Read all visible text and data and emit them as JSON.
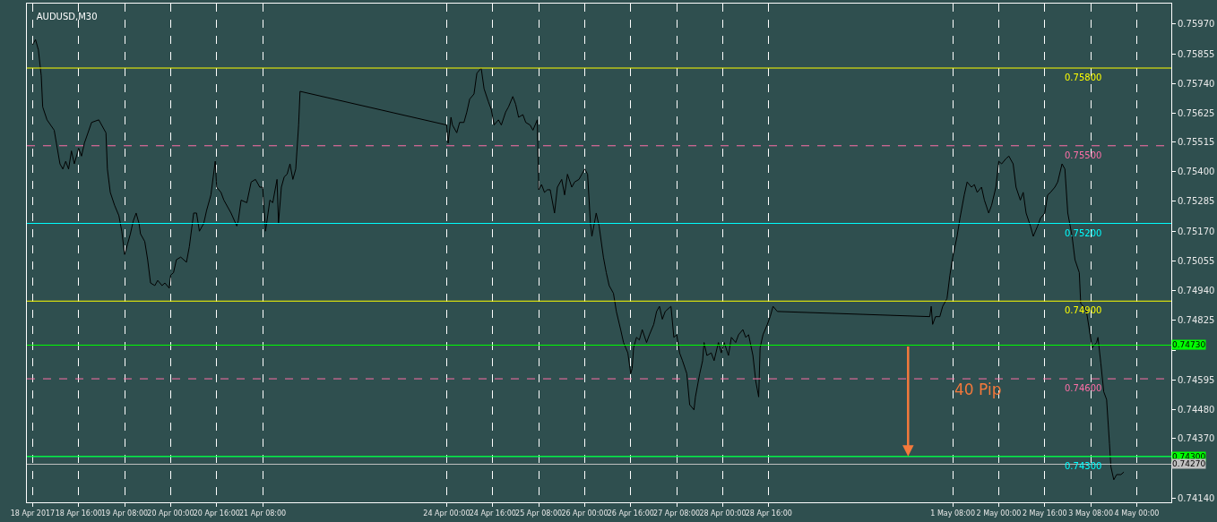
{
  "chart_data": {
    "type": "line",
    "title": "AUDUSD,M30",
    "x": [
      "2017-04-18T00:00",
      "2017-04-18T01:00",
      "2017-04-18T02:00",
      "2017-04-18T03:00",
      "2017-04-18T03:30",
      "2017-04-18T05:00",
      "2017-04-18T07:30",
      "2017-04-18T09:30",
      "2017-04-18T10:30",
      "2017-04-18T11:30",
      "2017-04-18T12:30",
      "2017-04-18T13:30",
      "2017-04-18T14:30",
      "2017-04-18T16:00",
      "2017-04-18T17:00",
      "2017-04-18T18:00",
      "2017-04-18T20:30",
      "2017-04-18T23:00",
      "2017-04-19T01:30",
      "2017-04-19T02:00",
      "2017-04-19T03:00",
      "2017-04-19T04:30",
      "2017-04-19T06:00",
      "2017-04-19T07:00",
      "2017-04-19T08:00",
      "2017-04-19T09:00",
      "2017-04-19T10:00",
      "2017-04-19T11:00",
      "2017-04-19T12:00",
      "2017-04-19T13:00",
      "2017-04-19T13:30",
      "2017-04-19T15:00",
      "2017-04-19T16:00",
      "2017-04-19T17:00",
      "2017-04-19T18:30",
      "2017-04-19T19:30",
      "2017-04-19T21:00",
      "2017-04-19T22:00",
      "2017-04-19T23:30",
      "2017-04-20T00:00",
      "2017-04-20T01:00",
      "2017-04-20T02:00",
      "2017-04-20T03:30",
      "2017-04-20T05:30",
      "2017-04-20T06:30",
      "2017-04-20T08:00",
      "2017-04-20T09:00",
      "2017-04-20T10:00",
      "2017-04-20T11:30",
      "2017-04-20T12:30",
      "2017-04-20T14:00",
      "2017-04-20T15:30",
      "2017-04-20T16:00",
      "2017-04-20T17:30",
      "2017-04-20T18:30",
      "2017-04-20T21:00",
      "2017-04-20T23:00",
      "2017-04-20T23:30",
      "2017-04-21T00:30",
      "2017-04-21T02:30",
      "2017-04-21T04:00",
      "2017-04-21T05:30",
      "2017-04-21T07:00",
      "2017-04-21T08:00",
      "2017-04-21T09:00",
      "2017-04-21T10:30",
      "2017-04-21T11:30",
      "2017-04-21T13:00",
      "2017-04-21T13:30",
      "2017-04-21T14:30",
      "2017-04-21T15:30",
      "2017-04-21T16:30",
      "2017-04-21T17:30",
      "2017-04-21T18:30",
      "2017-04-21T19:30",
      "2017-04-21T20:30",
      "2017-04-21T21:00",
      "2017-04-24T00:00",
      "2017-04-24T00:30",
      "2017-04-24T01:30",
      "2017-04-24T02:00",
      "2017-04-24T03:30",
      "2017-04-24T04:30",
      "2017-04-24T06:00",
      "2017-04-24T07:00",
      "2017-04-24T08:00",
      "2017-04-24T09:30",
      "2017-04-24T10:30",
      "2017-04-24T12:00",
      "2017-04-24T13:00",
      "2017-04-24T14:30",
      "2017-04-24T15:30",
      "2017-04-24T16:30",
      "2017-04-24T18:00",
      "2017-04-24T19:00",
      "2017-04-24T20:30",
      "2017-04-24T21:30",
      "2017-04-24T23:00",
      "2017-04-25T00:00",
      "2017-04-25T01:00",
      "2017-04-25T02:30",
      "2017-04-25T03:30",
      "2017-04-25T05:00",
      "2017-04-25T06:00",
      "2017-04-25T07:30",
      "2017-04-25T08:00",
      "2017-04-25T09:00",
      "2017-04-25T10:00",
      "2017-04-25T11:00",
      "2017-04-25T12:00",
      "2017-04-25T13:30",
      "2017-04-25T14:30",
      "2017-04-25T16:00",
      "2017-04-25T17:00",
      "2017-04-25T18:00",
      "2017-04-25T19:30",
      "2017-04-25T20:30",
      "2017-04-25T22:00",
      "2017-04-25T23:00",
      "2017-04-26T00:00",
      "2017-04-26T01:00",
      "2017-04-26T02:00",
      "2017-04-26T02:30",
      "2017-04-26T04:00",
      "2017-04-26T05:00",
      "2017-04-26T06:30",
      "2017-04-26T07:30",
      "2017-04-26T08:30",
      "2017-04-26T10:00",
      "2017-04-26T11:00",
      "2017-04-26T12:30",
      "2017-04-26T13:30",
      "2017-04-26T15:00",
      "2017-04-26T16:00",
      "2017-04-26T16:30",
      "2017-04-26T17:00",
      "2017-04-26T18:00",
      "2017-04-26T19:00",
      "2017-04-26T20:00",
      "2017-04-26T21:30",
      "2017-04-26T22:30",
      "2017-04-27T00:00",
      "2017-04-27T01:00",
      "2017-04-27T02:00",
      "2017-04-27T03:00",
      "2017-04-27T04:00",
      "2017-04-27T06:00",
      "2017-04-27T07:00",
      "2017-04-27T08:00",
      "2017-04-27T09:00",
      "2017-04-27T10:00",
      "2017-04-27T11:30",
      "2017-04-27T12:30",
      "2017-04-27T14:00",
      "2017-04-27T14:30",
      "2017-04-27T16:00",
      "2017-04-27T17:00",
      "2017-04-27T17:30",
      "2017-04-27T18:30",
      "2017-04-27T20:00",
      "2017-04-27T21:00",
      "2017-04-27T22:30",
      "2017-04-27T23:30",
      "2017-04-28T00:30",
      "2017-04-28T02:00",
      "2017-04-28T03:00",
      "2017-04-28T04:30",
      "2017-04-28T05:30",
      "2017-04-28T07:00",
      "2017-04-28T08:00",
      "2017-04-28T09:00",
      "2017-04-28T10:30",
      "2017-04-28T11:30",
      "2017-04-28T12:30",
      "2017-04-28T13:00",
      "2017-04-28T14:00",
      "2017-04-28T15:30",
      "2017-04-28T16:30",
      "2017-04-28T17:30",
      "2017-04-28T19:00",
      "2017-05-01T00:00",
      "2017-05-01T00:30",
      "2017-05-01T01:00",
      "2017-05-01T02:00",
      "2017-05-01T03:30",
      "2017-05-01T04:30",
      "2017-05-01T06:00",
      "2017-05-01T07:00",
      "2017-05-01T08:00",
      "2017-05-01T09:30",
      "2017-05-01T10:30",
      "2017-05-01T12:00",
      "2017-05-01T13:00",
      "2017-05-01T14:30",
      "2017-05-01T15:30",
      "2017-05-01T16:30",
      "2017-05-01T18:00",
      "2017-05-01T19:00",
      "2017-05-01T20:30",
      "2017-05-01T21:30",
      "2017-05-01T23:00",
      "2017-05-02T00:00",
      "2017-05-02T01:00",
      "2017-05-02T02:30",
      "2017-05-02T03:30",
      "2017-05-02T05:00",
      "2017-05-02T06:00",
      "2017-05-02T07:30",
      "2017-05-02T08:30",
      "2017-05-02T09:30",
      "2017-05-02T11:00",
      "2017-05-02T12:00",
      "2017-05-02T13:30",
      "2017-05-02T14:30",
      "2017-05-02T16:00",
      "2017-05-02T17:00",
      "2017-05-02T18:00",
      "2017-05-02T19:30",
      "2017-05-02T20:30",
      "2017-05-02T22:00",
      "2017-05-02T23:00",
      "2017-05-03T00:00",
      "2017-05-03T01:30",
      "2017-05-03T02:30",
      "2017-05-03T04:00",
      "2017-05-03T04:30",
      "2017-05-03T05:30",
      "2017-05-03T06:30",
      "2017-05-03T07:30",
      "2017-05-03T08:30",
      "2017-05-03T10:00",
      "2017-05-03T10:30",
      "2017-05-03T11:30",
      "2017-05-03T12:30",
      "2017-05-03T13:30",
      "2017-05-03T14:30",
      "2017-05-03T15:00",
      "2017-05-03T16:00",
      "2017-05-03T17:00",
      "2017-05-03T18:30",
      "2017-05-03T19:30"
    ],
    "series": [
      {
        "color": "#000000",
        "values": [
          0.7589,
          0.7591,
          0.7587,
          0.7577,
          0.7565,
          0.756,
          0.7556,
          0.7543,
          0.7541,
          0.7544,
          0.7541,
          0.7548,
          0.7543,
          0.7549,
          0.7546,
          0.7551,
          0.7559,
          0.756,
          0.7555,
          0.7541,
          0.7532,
          0.7527,
          0.7523,
          0.7517,
          0.7508,
          0.7512,
          0.7516,
          0.7521,
          0.7524,
          0.752,
          0.7516,
          0.7513,
          0.7506,
          0.7497,
          0.7496,
          0.7498,
          0.7496,
          0.7497,
          0.7495,
          0.75,
          0.7501,
          0.7506,
          0.7507,
          0.7505,
          0.7511,
          0.7524,
          0.7524,
          0.7517,
          0.752,
          0.7525,
          0.7531,
          0.7544,
          0.7534,
          0.7532,
          0.7529,
          0.7524,
          0.7519,
          0.7521,
          0.7529,
          0.7528,
          0.7536,
          0.7537,
          0.7534,
          0.7534,
          0.7517,
          0.7529,
          0.7528,
          0.7537,
          0.752,
          0.7534,
          0.7538,
          0.7539,
          0.7543,
          0.7537,
          0.7541,
          0.7558,
          0.7571,
          0.7558,
          0.7551,
          0.7561,
          0.7558,
          0.7555,
          0.7559,
          0.7559,
          0.7563,
          0.7568,
          0.757,
          0.7578,
          0.758,
          0.7572,
          0.7567,
          0.7564,
          0.7558,
          0.756,
          0.7558,
          0.7563,
          0.7565,
          0.7569,
          0.7566,
          0.7561,
          0.7562,
          0.7559,
          0.7558,
          0.7556,
          0.756,
          0.7533,
          0.7535,
          0.7532,
          0.7533,
          0.7533,
          0.7524,
          0.7534,
          0.7537,
          0.7531,
          0.7539,
          0.7534,
          0.7536,
          0.7537,
          0.7539,
          0.7541,
          0.7539,
          0.752,
          0.7515,
          0.7524,
          0.7519,
          0.7507,
          0.7501,
          0.7496,
          0.7493,
          0.7486,
          0.7479,
          0.7474,
          0.747,
          0.7462,
          0.7464,
          0.7472,
          0.7476,
          0.7475,
          0.7479,
          0.7474,
          0.7477,
          0.7481,
          0.7486,
          0.7488,
          0.7483,
          0.7486,
          0.7488,
          0.7476,
          0.7477,
          0.747,
          0.7467,
          0.7462,
          0.745,
          0.7448,
          0.7453,
          0.7462,
          0.7467,
          0.7474,
          0.7469,
          0.747,
          0.7467,
          0.7474,
          0.747,
          0.7474,
          0.7469,
          0.7476,
          0.7474,
          0.7477,
          0.7479,
          0.7476,
          0.7477,
          0.7469,
          0.7459,
          0.7453,
          0.7472,
          0.7477,
          0.7481,
          0.7484,
          0.7488,
          0.7486,
          0.7484,
          0.7488,
          0.7481,
          0.7484,
          0.7484,
          0.7488,
          0.7491,
          0.75,
          0.7507,
          0.7515,
          0.7522,
          0.7531,
          0.7536,
          0.7534,
          0.7535,
          0.7532,
          0.7534,
          0.7529,
          0.7524,
          0.7527,
          0.7534,
          0.7544,
          0.7543,
          0.7545,
          0.7546,
          0.7543,
          0.7534,
          0.7529,
          0.7532,
          0.7524,
          0.7519,
          0.7515,
          0.7519,
          0.7522,
          0.7524,
          0.7531,
          0.7532,
          0.7534,
          0.7536,
          0.7543,
          0.7541,
          0.7524,
          0.7515,
          0.7506,
          0.7501,
          0.7489,
          0.7488,
          0.7486,
          0.7479,
          0.7472,
          0.7474,
          0.7476,
          0.7466,
          0.7455,
          0.7452,
          0.7435,
          0.7426,
          0.7421,
          0.7423,
          0.7423,
          0.7424
        ]
      }
    ],
    "xlim": [
      "2017-04-17T22:00",
      "2017-05-04T12:00"
    ],
    "xticks": [
      {
        "value": "2017-04-18T00:00",
        "label": "18 Apr 2017"
      },
      {
        "value": "2017-04-18T16:00",
        "label": "18 Apr 16:00"
      },
      {
        "value": "2017-04-19T08:00",
        "label": "19 Apr 08:00"
      },
      {
        "value": "2017-04-20T00:00",
        "label": "20 Apr 00:00"
      },
      {
        "value": "2017-04-20T16:00",
        "label": "20 Apr 16:00"
      },
      {
        "value": "2017-04-21T08:00",
        "label": "21 Apr 08:00"
      },
      {
        "value": "2017-04-24T00:00",
        "label": "24 Apr 00:00"
      },
      {
        "value": "2017-04-24T16:00",
        "label": "24 Apr 16:00"
      },
      {
        "value": "2017-04-25T08:00",
        "label": "25 Apr 08:00"
      },
      {
        "value": "2017-04-26T00:00",
        "label": "26 Apr 00:00"
      },
      {
        "value": "2017-04-26T16:00",
        "label": "26 Apr 16:00"
      },
      {
        "value": "2017-04-27T08:00",
        "label": "27 Apr 08:00"
      },
      {
        "value": "2017-04-28T00:00",
        "label": "28 Apr 00:00"
      },
      {
        "value": "2017-04-28T16:00",
        "label": "28 Apr 16:00"
      },
      {
        "value": "2017-05-01T08:00",
        "label": "1 May 08:00"
      },
      {
        "value": "2017-05-02T00:00",
        "label": "2 May 00:00"
      },
      {
        "value": "2017-05-02T16:00",
        "label": "2 May 16:00"
      },
      {
        "value": "2017-05-03T08:00",
        "label": "3 May 08:00"
      },
      {
        "value": "2017-05-04T00:00",
        "label": "4 May 00:00"
      }
    ],
    "ylim": [
      0.74123,
      0.76049
    ],
    "yticks": [
      {
        "value": 0.7597,
        "label": "0.75970"
      },
      0.75855,
      {
        "value": 0.7574,
        "label": "0.75740"
      },
      0.75625,
      0.75515,
      {
        "value": 0.754,
        "label": "0.75400"
      },
      0.75285,
      {
        "value": 0.7517,
        "label": "0.75170"
      },
      0.75055,
      {
        "value": 0.7494,
        "label": "0.74940"
      },
      0.74825,
      {
        "value": 0.7471,
        "label": null
      },
      0.74595,
      {
        "value": 0.7448,
        "label": "0.74480"
      },
      {
        "value": 0.7437,
        "label": "0.74370"
      },
      {
        "value": 0.7414,
        "label": "0.74140"
      }
    ],
    "ref_lines": [
      {
        "axis": "y",
        "value": 0.758,
        "label": "0.75800",
        "color": "#ffff00",
        "line_style": "solid"
      },
      {
        "axis": "y",
        "value": 0.755,
        "label": "0.75500",
        "color": "#ff6fa8",
        "line_style": "dashed"
      },
      {
        "axis": "y",
        "value": 0.752,
        "label": "0.75200",
        "color": "#00ffff",
        "line_style": "solid"
      },
      {
        "axis": "y",
        "value": 0.749,
        "label": "0.74900",
        "color": "#ffff00",
        "line_style": "solid"
      },
      {
        "axis": "y",
        "value": 0.7473,
        "label": "0.74730",
        "color": "#00ff00",
        "line_style": "solid"
      },
      {
        "axis": "y",
        "value": 0.746,
        "label": "0.74600",
        "color": "#ff6fa8",
        "line_style": "dashed"
      },
      {
        "axis": "y",
        "value": 0.743,
        "label": "0.74300",
        "color": "#00ffff",
        "line_style": "solid"
      },
      {
        "axis": "y",
        "value": 0.743,
        "label": "0.74300",
        "color": "#00ff00",
        "line_style": "solid"
      },
      {
        "axis": "y",
        "value": 0.7427,
        "label": "0.74270",
        "color": "#c0c0c0",
        "line_style": "solid"
      }
    ],
    "annotations": [
      "40 Pip"
    ],
    "grid": "x",
    "marker": "none",
    "line_style": "solid"
  }
}
